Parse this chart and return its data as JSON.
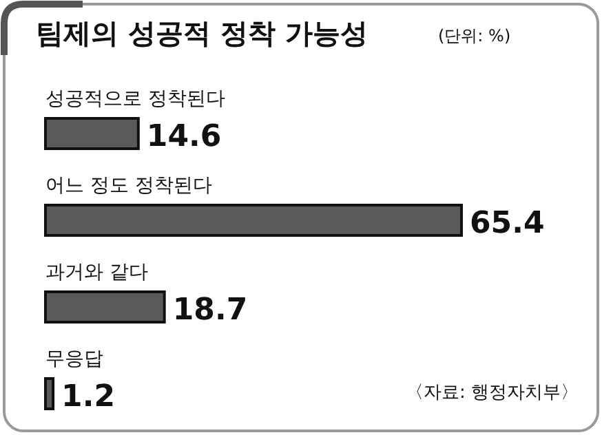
{
  "chart_data": {
    "type": "bar",
    "orientation": "horizontal",
    "title": "팀제의 성공적 정착 가능성",
    "subtitle": "(단위: %)",
    "categories": [
      "성공적으로 정착된다",
      "어느 정도 정착된다",
      "과거와 같다",
      "무응답"
    ],
    "values": [
      14.6,
      65.4,
      18.7,
      1.2
    ],
    "color": "#5a5a5a",
    "data_labels": true,
    "annotations": [
      "〈자료: 행정자치부〉"
    ]
  }
}
